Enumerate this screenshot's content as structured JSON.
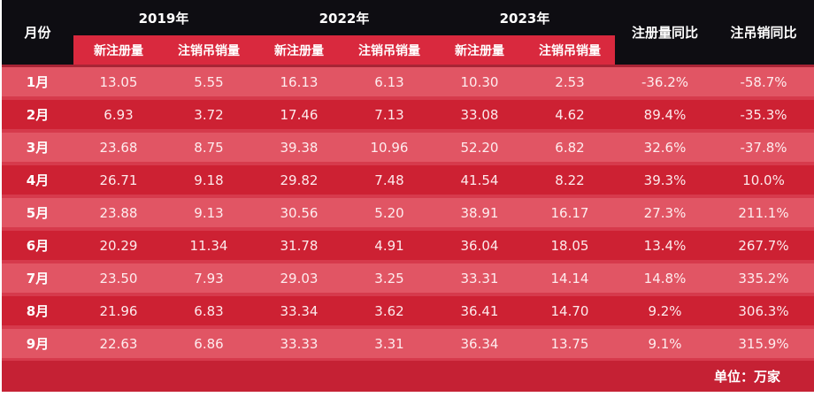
{
  "table": {
    "month_header": "月份",
    "year_groups": [
      {
        "year": "2019年",
        "sub": [
          "新注册量",
          "注销吊销量"
        ]
      },
      {
        "year": "2022年",
        "sub": [
          "新注册量",
          "注销吊销量"
        ]
      },
      {
        "year": "2023年",
        "sub": [
          "新注册量",
          "注销吊销量"
        ]
      }
    ],
    "yoy_headers": [
      "注册量同比",
      "注吊销同比"
    ],
    "rows": [
      {
        "month": "1月",
        "values": [
          "13.05",
          "5.55",
          "16.13",
          "6.13",
          "10.30",
          "2.53",
          "-36.2%",
          "-58.7%"
        ]
      },
      {
        "month": "2月",
        "values": [
          "6.93",
          "3.72",
          "17.46",
          "7.13",
          "33.08",
          "4.62",
          "89.4%",
          "-35.3%"
        ]
      },
      {
        "month": "3月",
        "values": [
          "23.68",
          "8.75",
          "39.38",
          "10.96",
          "52.20",
          "6.82",
          "32.6%",
          "-37.8%"
        ]
      },
      {
        "month": "4月",
        "values": [
          "26.71",
          "9.18",
          "29.82",
          "7.48",
          "41.54",
          "8.22",
          "39.3%",
          "10.0%"
        ]
      },
      {
        "month": "5月",
        "values": [
          "23.88",
          "9.13",
          "30.56",
          "5.20",
          "38.91",
          "16.17",
          "27.3%",
          "211.1%"
        ]
      },
      {
        "month": "6月",
        "values": [
          "20.29",
          "11.34",
          "31.78",
          "4.91",
          "36.04",
          "18.05",
          "13.4%",
          "267.7%"
        ]
      },
      {
        "month": "7月",
        "values": [
          "23.50",
          "7.93",
          "29.03",
          "3.25",
          "33.31",
          "14.14",
          "14.8%",
          "335.2%"
        ]
      },
      {
        "month": "8月",
        "values": [
          "21.96",
          "6.83",
          "33.34",
          "3.62",
          "36.41",
          "14.70",
          "9.2%",
          "306.3%"
        ]
      },
      {
        "month": "9月",
        "values": [
          "22.63",
          "6.86",
          "33.33",
          "3.31",
          "36.34",
          "13.75",
          "9.1%",
          "315.9%"
        ]
      }
    ],
    "unit_note": "单位：万家"
  },
  "colors": {
    "header_bg": "#0e0d12",
    "subheader_bg": "#d9293e",
    "row_light": "#e15564",
    "row_dark": "#cd2133",
    "footer_bg": "#c52134",
    "gap_bg": "#d63a4c",
    "text": "#ffffff"
  },
  "chart_data": {
    "type": "table",
    "title": "",
    "unit": "万家",
    "columns": [
      "月份",
      "2019年 新注册量",
      "2019年 注销吊销量",
      "2022年 新注册量",
      "2022年 注销吊销量",
      "2023年 新注册量",
      "2023年 注销吊销量",
      "注册量同比",
      "注吊销同比"
    ],
    "rows": [
      [
        "1月",
        13.05,
        5.55,
        16.13,
        6.13,
        10.3,
        2.53,
        "-36.2%",
        "-58.7%"
      ],
      [
        "2月",
        6.93,
        3.72,
        17.46,
        7.13,
        33.08,
        4.62,
        "89.4%",
        "-35.3%"
      ],
      [
        "3月",
        23.68,
        8.75,
        39.38,
        10.96,
        52.2,
        6.82,
        "32.6%",
        "-37.8%"
      ],
      [
        "4月",
        26.71,
        9.18,
        29.82,
        7.48,
        41.54,
        8.22,
        "39.3%",
        "10.0%"
      ],
      [
        "5月",
        23.88,
        9.13,
        30.56,
        5.2,
        38.91,
        16.17,
        "27.3%",
        "211.1%"
      ],
      [
        "6月",
        20.29,
        11.34,
        31.78,
        4.91,
        36.04,
        18.05,
        "13.4%",
        "267.7%"
      ],
      [
        "7月",
        23.5,
        7.93,
        29.03,
        3.25,
        33.31,
        14.14,
        "14.8%",
        "335.2%"
      ],
      [
        "8月",
        21.96,
        6.83,
        33.34,
        3.62,
        36.41,
        14.7,
        "9.2%",
        "306.3%"
      ],
      [
        "9月",
        22.63,
        6.86,
        33.33,
        3.31,
        36.34,
        13.75,
        "9.1%",
        "315.9%"
      ]
    ]
  }
}
